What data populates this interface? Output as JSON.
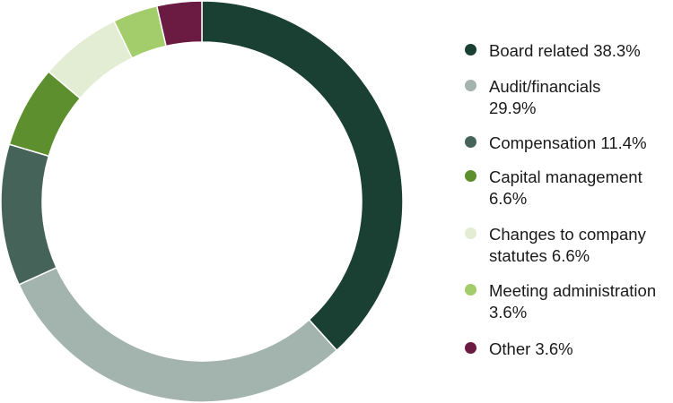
{
  "chart_data": {
    "type": "pie",
    "variant": "donut",
    "legend_position": "right",
    "slices": [
      {
        "name": "Board related",
        "value": 38.3,
        "label": "Board related 38.3%",
        "color": "#1a3f33"
      },
      {
        "name": "Audit/financials",
        "value": 29.9,
        "label": "Audit/financials 29.9%",
        "color": "#a3b3ad"
      },
      {
        "name": "Compensation",
        "value": 11.4,
        "label": "Compensation 11.4%",
        "color": "#466359"
      },
      {
        "name": "Capital management",
        "value": 6.6,
        "label": "Capital management 6.6%",
        "color": "#5e8f2f"
      },
      {
        "name": "Changes to company statutes",
        "value": 6.6,
        "label": "Changes to company statutes 6.6%",
        "color": "#e3edd3"
      },
      {
        "name": "Meeting administration",
        "value": 3.6,
        "label": "Meeting administration 3.6%",
        "color": "#a3cc6b"
      },
      {
        "name": "Other",
        "value": 3.6,
        "label": "Other 3.6%",
        "color": "#6b1b41"
      }
    ]
  }
}
